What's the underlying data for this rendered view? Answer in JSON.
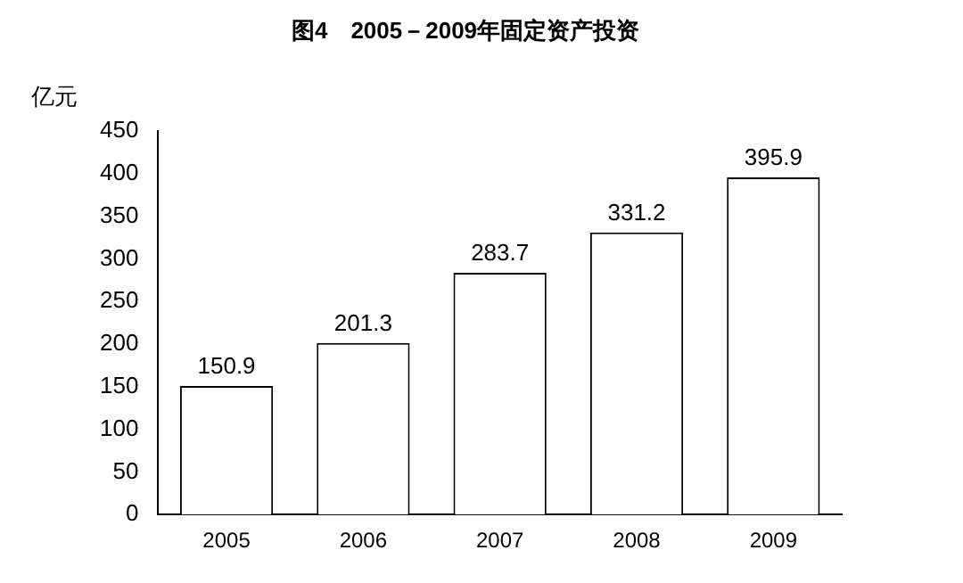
{
  "chart_data": {
    "type": "bar",
    "title": "图4　2005－2009年固定资产投资",
    "ylabel": "亿元",
    "categories": [
      "2005",
      "2006",
      "2007",
      "2008",
      "2009"
    ],
    "values": [
      150.9,
      201.3,
      283.7,
      331.2,
      395.9
    ],
    "color": "#ffffff",
    "ylim": [
      0,
      450
    ],
    "yticks": [
      0,
      50,
      100,
      150,
      200,
      250,
      300,
      350,
      400,
      450
    ],
    "grid": false,
    "data_labels": true,
    "legend": false
  }
}
